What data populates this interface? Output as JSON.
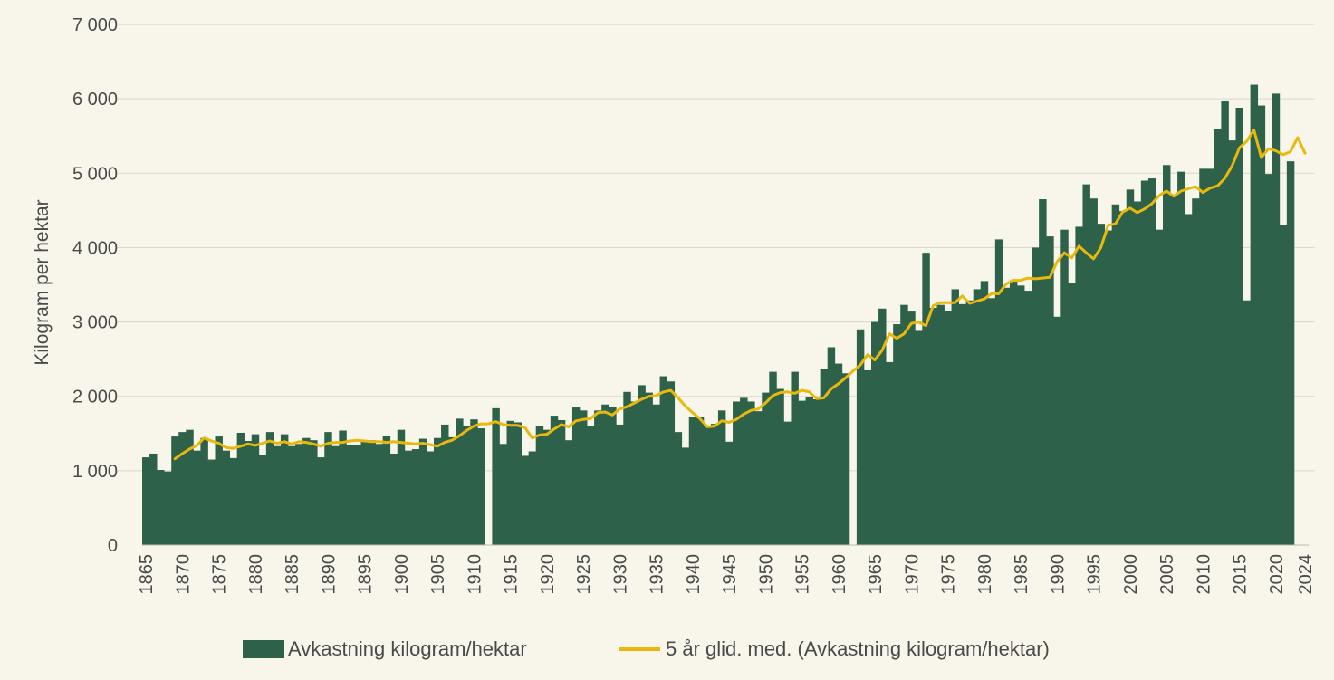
{
  "colors": {
    "bars": "#2e614a",
    "line": "#e8b90c",
    "grid": "#d9d6cc",
    "background": "#f8f5ea"
  },
  "chart_data": {
    "type": "bar",
    "ylabel": "Kilogram per hektar",
    "ylim": [
      0,
      7000
    ],
    "yticks": [
      0,
      1000,
      2000,
      3000,
      4000,
      5000,
      6000,
      7000
    ],
    "ytick_labels": [
      "0",
      "1 000",
      "2 000",
      "3 000",
      "4 000",
      "5 000",
      "6 000",
      "7 000"
    ],
    "xlim": [
      1865,
      2024
    ],
    "xticks": [
      1865,
      1870,
      1875,
      1880,
      1885,
      1890,
      1895,
      1900,
      1905,
      1910,
      1915,
      1920,
      1925,
      1930,
      1935,
      1940,
      1945,
      1950,
      1955,
      1960,
      1965,
      1970,
      1975,
      1980,
      1985,
      1990,
      1995,
      2000,
      2005,
      2010,
      2015,
      2020,
      2024
    ],
    "grid": true,
    "legend_position": "bottom",
    "series": [
      {
        "name": "Avkastning kilogram/hektar",
        "type": "bar",
        "x_start": 1865,
        "values": [
          1180,
          1230,
          1010,
          990,
          1460,
          1520,
          1550,
          1270,
          1440,
          1150,
          1460,
          1270,
          1170,
          1510,
          1400,
          1490,
          1210,
          1520,
          1330,
          1490,
          1330,
          1360,
          1440,
          1410,
          1180,
          1520,
          1330,
          1540,
          1350,
          1340,
          1400,
          1410,
          1360,
          1470,
          1230,
          1550,
          1270,
          1290,
          1430,
          1260,
          1440,
          1620,
          1450,
          1700,
          1600,
          1690,
          1570,
          0,
          1840,
          1360,
          1670,
          1650,
          1200,
          1260,
          1600,
          1550,
          1740,
          1680,
          1410,
          1850,
          1810,
          1600,
          1810,
          1890,
          1860,
          1620,
          2060,
          1930,
          2150,
          2050,
          1890,
          2270,
          2200,
          1520,
          1310,
          1720,
          1720,
          1600,
          1630,
          1810,
          1390,
          1930,
          1980,
          1930,
          1800,
          2050,
          2330,
          2100,
          1660,
          2330,
          1940,
          1990,
          1960,
          2370,
          2660,
          2440,
          2310,
          0,
          2900,
          2350,
          3000,
          3180,
          2460,
          2970,
          3230,
          3140,
          2880,
          3930,
          3190,
          3230,
          3150,
          3440,
          3240,
          3290,
          3440,
          3550,
          3320,
          4110,
          3460,
          3560,
          3490,
          3420,
          4000,
          4650,
          4150,
          3070,
          4240,
          3520,
          4280,
          4850,
          4660,
          4320,
          4230,
          4580,
          4490,
          4780,
          4620,
          4900,
          4930,
          4240,
          5110,
          4710,
          5020,
          4450,
          4660,
          5060,
          5060,
          5600,
          5970,
          5440,
          5880,
          3290,
          6190,
          5910,
          4990,
          6070,
          4300,
          5160
        ]
      },
      {
        "name": "5 år glid. med. (Avkastning kilogram/hektar)",
        "type": "line",
        "x_start": 1869,
        "values": [
          1160,
          1230,
          1290,
          1340,
          1440,
          1400,
          1370,
          1310,
          1300,
          1330,
          1360,
          1340,
          1370,
          1400,
          1370,
          1390,
          1360,
          1390,
          1380,
          1360,
          1330,
          1370,
          1380,
          1380,
          1400,
          1410,
          1400,
          1390,
          1390,
          1380,
          1390,
          1380,
          1370,
          1360,
          1370,
          1350,
          1330,
          1380,
          1410,
          1470,
          1540,
          1600,
          1630,
          1630,
          1660,
          1620,
          1610,
          1610,
          1580,
          1440,
          1480,
          1490,
          1560,
          1620,
          1590,
          1670,
          1690,
          1700,
          1780,
          1790,
          1750,
          1830,
          1860,
          1910,
          1960,
          2000,
          2010,
          2060,
          2080,
          1980,
          1870,
          1780,
          1700,
          1590,
          1600,
          1670,
          1650,
          1690,
          1760,
          1810,
          1830,
          1910,
          2010,
          2050,
          2060,
          2040,
          2080,
          2060,
          1970,
          1980,
          2100,
          2170,
          2250,
          2340,
          2420,
          2560,
          2490,
          2620,
          2840,
          2780,
          2840,
          2980,
          3000,
          2950,
          3220,
          3260,
          3260,
          3260,
          3350,
          3250,
          3280,
          3310,
          3380,
          3380,
          3510,
          3560,
          3560,
          3590,
          3580,
          3590,
          3600,
          3810,
          3930,
          3860,
          4020,
          3930,
          3850,
          4000,
          4300,
          4320,
          4480,
          4530,
          4470,
          4520,
          4590,
          4700,
          4760,
          4690,
          4760,
          4790,
          4820,
          4740,
          4800,
          4830,
          4930,
          5100,
          5340,
          5430,
          5580,
          5210,
          5330,
          5300,
          5250,
          5290,
          5480,
          5270
        ]
      }
    ]
  }
}
